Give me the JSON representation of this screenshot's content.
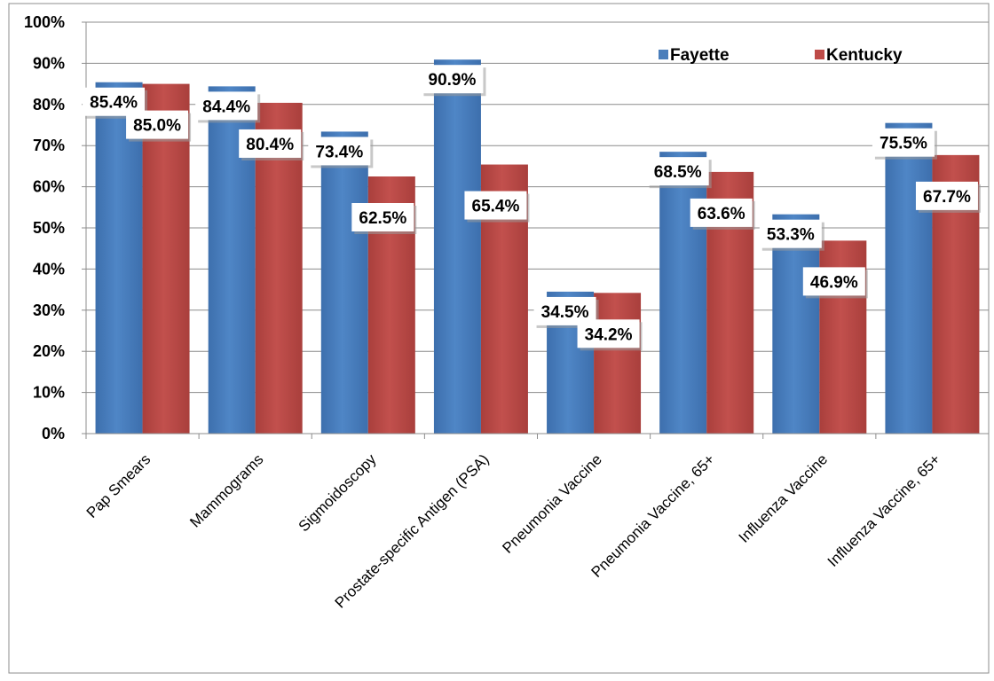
{
  "chart_data": {
    "type": "bar",
    "title": "",
    "xlabel": "",
    "ylabel": "",
    "categories": [
      "Pap Smears",
      "Mammograms",
      "Sigmoidoscopy",
      "Prostate-specific Antigen (PSA)",
      "Pneumonia Vaccine",
      "Pneumonia Vaccine, 65+",
      "Influenza Vaccine",
      "Influenza Vaccine, 65+"
    ],
    "series": [
      {
        "name": "Fayette",
        "color": "#4a7ebb",
        "values": [
          85.4,
          84.4,
          73.4,
          90.9,
          34.5,
          68.5,
          53.3,
          75.5
        ],
        "labels": [
          "85.4%",
          "84.4%",
          "73.4%",
          "90.9%",
          "34.5%",
          "68.5%",
          "53.3%",
          "75.5%"
        ]
      },
      {
        "name": "Kentucky",
        "color": "#be4b48",
        "values": [
          85.0,
          80.4,
          62.5,
          65.4,
          34.2,
          63.6,
          46.9,
          67.7
        ],
        "labels": [
          "85.0%",
          "80.4%",
          "62.5%",
          "65.4%",
          "34.2%",
          "63.6%",
          "46.9%",
          "67.7%"
        ]
      }
    ],
    "ylim": [
      0,
      100
    ],
    "yticks": [
      "0%",
      "10%",
      "20%",
      "30%",
      "40%",
      "50%",
      "60%",
      "70%",
      "80%",
      "90%",
      "100%"
    ],
    "grid": true,
    "legend_position": "top-right"
  }
}
